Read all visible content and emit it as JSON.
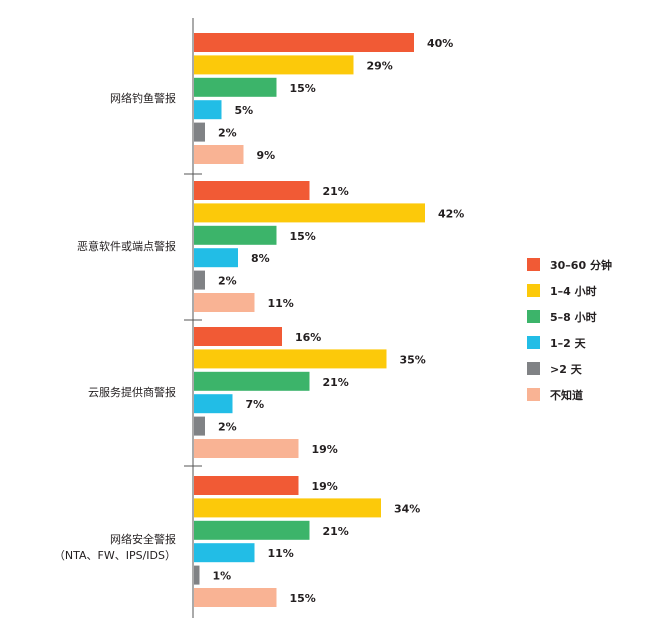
{
  "chart_data": {
    "type": "bar",
    "orientation": "horizontal",
    "title": "",
    "xlabel": "",
    "ylabel": "",
    "xlim": [
      0,
      45
    ],
    "grid": false,
    "legend_position": "right",
    "categories": [
      "网络钓鱼警报",
      "恶意软件或端点警报",
      "云服务提供商警报",
      "网络安全警报"
    ],
    "category_sublabels": [
      "",
      "",
      "",
      "（NTA、FW、IPS/IDS）"
    ],
    "series": [
      {
        "name": "30–60 分钟",
        "color": "#f15a35",
        "values": [
          40,
          21,
          16,
          19
        ]
      },
      {
        "name": "1–4 小时",
        "color": "#fcc90a",
        "values": [
          29,
          42,
          35,
          34
        ]
      },
      {
        "name": "5–8 小时",
        "color": "#3cb46a",
        "values": [
          15,
          15,
          21,
          21
        ]
      },
      {
        "name": "1–2 天",
        "color": "#22bde6",
        "values": [
          5,
          8,
          7,
          11
        ]
      },
      {
        "name": ">2 天",
        "color": "#808285",
        "values": [
          2,
          2,
          2,
          1
        ]
      },
      {
        "name": "不知道",
        "color": "#f9b394",
        "values": [
          9,
          11,
          19,
          15
        ]
      }
    ],
    "value_suffix": "%"
  }
}
